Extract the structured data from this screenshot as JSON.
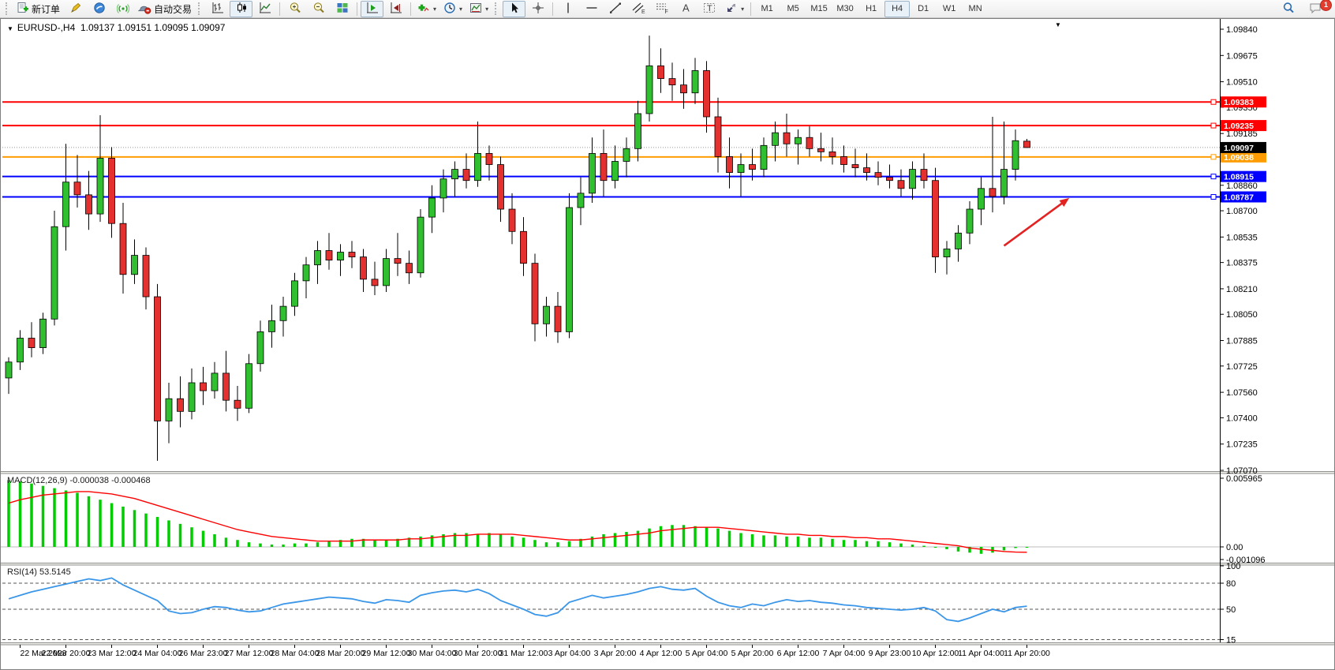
{
  "toolbar": {
    "new_order": "新订单",
    "autotrading": "自动交易",
    "timeframes": [
      "M1",
      "M5",
      "M15",
      "M30",
      "H1",
      "H4",
      "D1",
      "W1",
      "MN"
    ],
    "active_timeframe": "H4",
    "notification_badge": "1",
    "icon_letters": {
      "channel": "E",
      "fibonacci": "F",
      "text": "A",
      "label": "T"
    }
  },
  "chart": {
    "title": "EURUSD-,H4",
    "ohlc_display": "1.09137 1.09151 1.09095 1.09097",
    "collapse_arrow": "▼",
    "title_arrow": "▼",
    "macd_title": "MACD(12,26,9)",
    "macd_values": "-0.000038 -0.000468",
    "rsi_title": "RSI(14)",
    "rsi_value": "53.5145"
  },
  "colors": {
    "up": "#2fbf2f",
    "down": "#e53030",
    "wick": "#000000",
    "macd_hist": "#00cc00",
    "macd_signal": "#ff0000",
    "rsi_line": "#3a96e8",
    "level_red": "#ff0000",
    "level_blue": "#0000ff",
    "level_orange": "#ff9d00",
    "current_badge": "#000000",
    "arrow": "#e32222"
  },
  "chart_data": [
    {
      "type": "candlestick",
      "symbol": "EURUSD-",
      "timeframe": "H4",
      "ylim": [
        1.0707,
        1.0984
      ],
      "y_ticks": [
        1.0984,
        1.09675,
        1.0951,
        1.0935,
        1.09185,
        1.09025,
        1.0886,
        1.087,
        1.08535,
        1.08375,
        1.0821,
        1.0805,
        1.07885,
        1.07725,
        1.0756,
        1.074,
        1.07235,
        1.0707
      ],
      "x_labels": [
        "22 Mar 2023",
        "22 Mar 20:00",
        "23 Mar 12:00",
        "24 Mar 04:00",
        "26 Mar 23:00",
        "27 Mar 12:00",
        "28 Mar 04:00",
        "28 Mar 20:00",
        "29 Mar 12:00",
        "30 Mar 04:00",
        "30 Mar 20:00",
        "31 Mar 12:00",
        "3 Apr 04:00",
        "3 Apr 20:00",
        "4 Apr 12:00",
        "5 Apr 04:00",
        "5 Apr 20:00",
        "6 Apr 12:00",
        "7 Apr 04:00",
        "9 Apr 23:00",
        "10 Apr 12:00",
        "11 Apr 04:00",
        "11 Apr 20:00"
      ],
      "hlines": [
        {
          "price": 1.09383,
          "label": "1.09383",
          "color": "#ff0000"
        },
        {
          "price": 1.09235,
          "label": "1.09235",
          "color": "#ff0000"
        },
        {
          "price": 1.09038,
          "label": "1.09038",
          "color": "#ff9d00"
        },
        {
          "price": 1.08915,
          "label": "1.08915",
          "color": "#0000ff"
        },
        {
          "price": 1.08787,
          "label": "1.08787",
          "color": "#0000ff"
        }
      ],
      "current_price": {
        "price": 1.09097,
        "label": "1.09097"
      },
      "annotation_arrow": {
        "bar1": 87.0,
        "price1": 1.0848,
        "bar2": 92.7,
        "price2": 1.0878
      },
      "ohlc": [
        [
          1.0765,
          1.0778,
          1.0755,
          1.0775
        ],
        [
          1.0775,
          1.0795,
          1.077,
          1.079
        ],
        [
          1.079,
          1.08,
          1.0778,
          1.0784
        ],
        [
          1.0784,
          1.0806,
          1.078,
          1.0802
        ],
        [
          1.0802,
          1.087,
          1.0798,
          1.086
        ],
        [
          1.086,
          1.0912,
          1.0845,
          1.0888
        ],
        [
          1.0888,
          1.0905,
          1.0872,
          1.088
        ],
        [
          1.088,
          1.0895,
          1.0858,
          1.0868
        ],
        [
          1.0868,
          1.093,
          1.0863,
          1.0903
        ],
        [
          1.0903,
          1.091,
          1.0853,
          1.0862
        ],
        [
          1.0862,
          1.0875,
          1.0818,
          1.083
        ],
        [
          1.083,
          1.0852,
          1.0824,
          1.0842
        ],
        [
          1.0842,
          1.0847,
          1.0808,
          1.0816
        ],
        [
          1.0816,
          1.0824,
          1.0713,
          1.0738
        ],
        [
          1.0738,
          1.0762,
          1.0724,
          1.0752
        ],
        [
          1.0752,
          1.0766,
          1.0734,
          1.0744
        ],
        [
          1.0744,
          1.0771,
          1.0739,
          1.0762
        ],
        [
          1.0762,
          1.0772,
          1.0748,
          1.0757
        ],
        [
          1.0757,
          1.0775,
          1.0752,
          1.0768
        ],
        [
          1.0768,
          1.0782,
          1.0744,
          1.0751
        ],
        [
          1.0751,
          1.076,
          1.0738,
          1.0746
        ],
        [
          1.0746,
          1.078,
          1.0743,
          1.0774
        ],
        [
          1.0774,
          1.0801,
          1.0769,
          1.0794
        ],
        [
          1.0794,
          1.0811,
          1.0784,
          1.0801
        ],
        [
          1.0801,
          1.0816,
          1.0791,
          1.081
        ],
        [
          1.081,
          1.0831,
          1.0804,
          1.0826
        ],
        [
          1.0826,
          1.0841,
          1.0815,
          1.0836
        ],
        [
          1.0836,
          1.0851,
          1.0824,
          1.0845
        ],
        [
          1.0845,
          1.0856,
          1.0833,
          1.0839
        ],
        [
          1.0839,
          1.0849,
          1.0829,
          1.0844
        ],
        [
          1.0844,
          1.0851,
          1.0834,
          1.0841
        ],
        [
          1.0841,
          1.0846,
          1.0819,
          1.0827
        ],
        [
          1.0827,
          1.0838,
          1.0817,
          1.0823
        ],
        [
          1.0823,
          1.0846,
          1.0819,
          1.084
        ],
        [
          1.084,
          1.0856,
          1.0829,
          1.0837
        ],
        [
          1.0837,
          1.0845,
          1.0824,
          1.0831
        ],
        [
          1.0831,
          1.0871,
          1.0828,
          1.0866
        ],
        [
          1.0866,
          1.0886,
          1.0856,
          1.0878
        ],
        [
          1.0878,
          1.0896,
          1.0869,
          1.089
        ],
        [
          1.089,
          1.0901,
          1.0879,
          1.0896
        ],
        [
          1.0896,
          1.0906,
          1.0884,
          1.0889
        ],
        [
          1.0889,
          1.0926,
          1.0885,
          1.0906
        ],
        [
          1.0906,
          1.0911,
          1.0889,
          1.0899
        ],
        [
          1.0899,
          1.0904,
          1.0863,
          1.0871
        ],
        [
          1.0871,
          1.0881,
          1.0849,
          1.0857
        ],
        [
          1.0857,
          1.0866,
          1.0829,
          1.0837
        ],
        [
          1.0837,
          1.0843,
          1.0788,
          1.0799
        ],
        [
          1.0799,
          1.0816,
          1.0791,
          1.081
        ],
        [
          1.081,
          1.0819,
          1.0787,
          1.0794
        ],
        [
          1.0794,
          1.0881,
          1.079,
          1.0872
        ],
        [
          1.0872,
          1.0891,
          1.0861,
          1.0881
        ],
        [
          1.0881,
          1.0916,
          1.0875,
          1.0906
        ],
        [
          1.0906,
          1.0921,
          1.0879,
          1.0889
        ],
        [
          1.0889,
          1.0911,
          1.0884,
          1.0901
        ],
        [
          1.0901,
          1.0916,
          1.0891,
          1.0909
        ],
        [
          1.0909,
          1.0939,
          1.0901,
          1.0931
        ],
        [
          1.0931,
          1.098,
          1.0926,
          1.0961
        ],
        [
          1.0961,
          1.0972,
          1.0944,
          1.0953
        ],
        [
          1.0953,
          1.0963,
          1.0939,
          1.0949
        ],
        [
          1.0949,
          1.0959,
          1.0934,
          1.0944
        ],
        [
          1.0944,
          1.0966,
          1.0937,
          1.0958
        ],
        [
          1.0958,
          1.0964,
          1.0919,
          1.0929
        ],
        [
          1.0929,
          1.0941,
          1.0894,
          1.0904
        ],
        [
          1.0904,
          1.0916,
          1.0884,
          1.0894
        ],
        [
          1.0894,
          1.0906,
          1.0879,
          1.0899
        ],
        [
          1.0899,
          1.0909,
          1.0889,
          1.0896
        ],
        [
          1.0896,
          1.0916,
          1.0891,
          1.0911
        ],
        [
          1.0911,
          1.0926,
          1.0901,
          1.0919
        ],
        [
          1.0919,
          1.0931,
          1.0904,
          1.0912
        ],
        [
          1.0912,
          1.0921,
          1.0899,
          1.0916
        ],
        [
          1.0916,
          1.0923,
          1.0904,
          1.0909
        ],
        [
          1.0909,
          1.0919,
          1.0901,
          1.0907
        ],
        [
          1.0907,
          1.0916,
          1.0899,
          1.0904
        ],
        [
          1.0904,
          1.0911,
          1.0894,
          1.0899
        ],
        [
          1.0899,
          1.0909,
          1.0891,
          1.0897
        ],
        [
          1.0897,
          1.0906,
          1.0889,
          1.0894
        ],
        [
          1.0894,
          1.0901,
          1.0886,
          1.0891
        ],
        [
          1.0891,
          1.0899,
          1.0884,
          1.0889
        ],
        [
          1.0889,
          1.0896,
          1.0879,
          1.0884
        ],
        [
          1.0884,
          1.0901,
          1.0877,
          1.0896
        ],
        [
          1.0896,
          1.0906,
          1.0884,
          1.0889
        ],
        [
          1.0889,
          1.0897,
          1.0831,
          1.0841
        ],
        [
          1.0841,
          1.0851,
          1.083,
          1.0846
        ],
        [
          1.0846,
          1.0861,
          1.0838,
          1.0856
        ],
        [
          1.0856,
          1.0876,
          1.0849,
          1.0871
        ],
        [
          1.0871,
          1.0891,
          1.0861,
          1.0884
        ],
        [
          1.0884,
          1.0929,
          1.0869,
          1.0879
        ],
        [
          1.0879,
          1.0926,
          1.0874,
          1.0896
        ],
        [
          1.0896,
          1.0921,
          1.0889,
          1.0914
        ],
        [
          1.09137,
          1.09151,
          1.09095,
          1.09097
        ]
      ]
    },
    {
      "type": "bar",
      "title": "MACD(12,26,9)",
      "current_values": [
        -3.8e-05,
        -0.000468
      ],
      "y_ticks": [
        {
          "v": 0.005965,
          "label": "0.005965"
        },
        {
          "v": 0,
          "label": "0.00"
        },
        {
          "v": -0.001096,
          "label": "-0.001096"
        }
      ],
      "ylim": [
        -0.0013,
        0.0062
      ],
      "hist": [
        0.0058,
        0.0057,
        0.0055,
        0.0053,
        0.0051,
        0.0049,
        0.0047,
        0.0044,
        0.0041,
        0.0038,
        0.0035,
        0.0032,
        0.0029,
        0.0026,
        0.0023,
        0.002,
        0.0017,
        0.0014,
        0.0011,
        0.0008,
        0.0006,
        0.0004,
        0.0003,
        0.0002,
        0.0002,
        0.0003,
        0.0003,
        0.0004,
        0.0005,
        0.0006,
        0.0007,
        0.0007,
        0.0006,
        0.0006,
        0.0007,
        0.0008,
        0.0009,
        0.001,
        0.0011,
        0.0012,
        0.0012,
        0.0011,
        0.0012,
        0.0011,
        0.0009,
        0.0008,
        0.0006,
        0.0004,
        0.0004,
        0.0005,
        0.0007,
        0.0009,
        0.0011,
        0.0012,
        0.0013,
        0.0014,
        0.0016,
        0.0018,
        0.0019,
        0.0019,
        0.0018,
        0.0017,
        0.0016,
        0.0014,
        0.0012,
        0.0011,
        0.001,
        0.001,
        0.0009,
        0.0009,
        0.0008,
        0.0008,
        0.0007,
        0.0006,
        0.0006,
        0.0005,
        0.0005,
        0.0004,
        0.0003,
        0.0002,
        0.0001,
        0.0,
        -0.0002,
        -0.0004,
        -0.0005,
        -0.0006,
        -0.0005,
        -0.0003,
        -0.0001,
        -3.8e-05
      ],
      "signal": [
        0.0038,
        0.0041,
        0.0043,
        0.0045,
        0.0046,
        0.0047,
        0.0048,
        0.0048,
        0.0047,
        0.0046,
        0.0044,
        0.0042,
        0.0039,
        0.0036,
        0.0033,
        0.003,
        0.0027,
        0.0024,
        0.0021,
        0.0018,
        0.0015,
        0.0013,
        0.0011,
        0.0009,
        0.0008,
        0.0007,
        0.0006,
        0.0005,
        0.0005,
        0.0005,
        0.0005,
        0.0006,
        0.0006,
        0.0006,
        0.0006,
        0.0007,
        0.0007,
        0.0008,
        0.0009,
        0.001,
        0.001,
        0.0011,
        0.0011,
        0.0011,
        0.0011,
        0.001,
        0.0009,
        0.0008,
        0.0007,
        0.0006,
        0.0006,
        0.0007,
        0.0008,
        0.0009,
        0.001,
        0.0011,
        0.0012,
        0.0014,
        0.0015,
        0.0016,
        0.0017,
        0.0017,
        0.0017,
        0.0016,
        0.0015,
        0.0014,
        0.0013,
        0.0012,
        0.0011,
        0.0011,
        0.001,
        0.001,
        0.0009,
        0.0009,
        0.0008,
        0.0008,
        0.0007,
        0.0007,
        0.0006,
        0.0005,
        0.0004,
        0.0003,
        0.0002,
        0.0001,
        -0.0001,
        -0.0002,
        -0.0003,
        -0.0004,
        -0.00045,
        -0.000468
      ]
    },
    {
      "type": "line",
      "title": "RSI(14)",
      "current_value": 53.5145,
      "levels": [
        80,
        50,
        15
      ],
      "y_ticks": [
        {
          "v": 100,
          "label": "100"
        },
        {
          "v": 80,
          "label": "80"
        },
        {
          "v": 50,
          "label": "50"
        },
        {
          "v": 15,
          "label": "15"
        }
      ],
      "ylim": [
        10,
        105
      ],
      "values": [
        62,
        66,
        70,
        73,
        76,
        79,
        82,
        85,
        83,
        86,
        78,
        72,
        66,
        60,
        48,
        45,
        46,
        50,
        53,
        52,
        49,
        47,
        48,
        52,
        56,
        58,
        60,
        62,
        64,
        63,
        62,
        59,
        57,
        61,
        60,
        58,
        66,
        69,
        71,
        72,
        70,
        73,
        68,
        60,
        55,
        50,
        44,
        42,
        46,
        58,
        62,
        66,
        63,
        65,
        67,
        70,
        74,
        76,
        73,
        72,
        74,
        65,
        58,
        54,
        52,
        56,
        54,
        58,
        61,
        59,
        60,
        58,
        57,
        55,
        54,
        52,
        51,
        50,
        49,
        50,
        52,
        48,
        38,
        36,
        40,
        45,
        50,
        47,
        52,
        53.5
      ]
    }
  ]
}
